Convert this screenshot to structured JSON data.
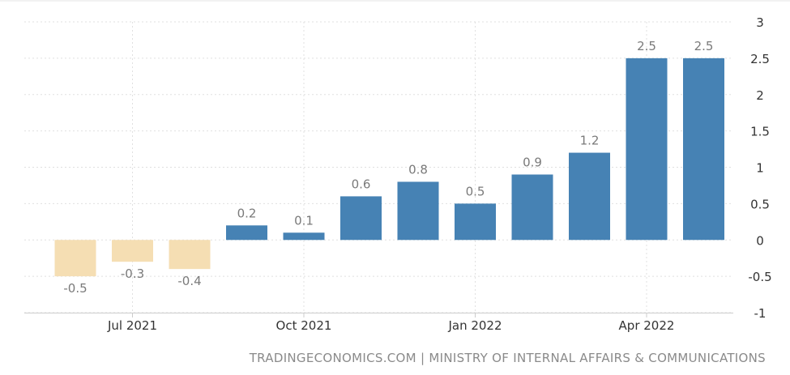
{
  "chart_data": {
    "type": "bar",
    "categories": [
      "Jun 2021",
      "Jul 2021",
      "Aug 2021",
      "Sep 2021",
      "Oct 2021",
      "Nov 2021",
      "Dec 2021",
      "Jan 2022",
      "Feb 2022",
      "Mar 2022",
      "Apr 2022",
      "May 2022"
    ],
    "values": [
      -0.5,
      -0.3,
      -0.4,
      0.2,
      0.1,
      0.6,
      0.8,
      0.5,
      0.9,
      1.2,
      2.5,
      2.5
    ],
    "data_labels": [
      "-0.5",
      "-0.3",
      "-0.4",
      "0.2",
      "0.1",
      "0.6",
      "0.8",
      "0.5",
      "0.9",
      "1.2",
      "2.5",
      "2.5"
    ],
    "x_tick_labels": [
      {
        "label": "Jul 2021",
        "category": "Jul 2021"
      },
      {
        "label": "Oct 2021",
        "category": "Oct 2021"
      },
      {
        "label": "Jan 2022",
        "category": "Jan 2022"
      },
      {
        "label": "Apr 2022",
        "category": "Apr 2022"
      }
    ],
    "y_ticks": [
      "3",
      "2.5",
      "2",
      "1.5",
      "1",
      "0.5",
      "0",
      "-0.5",
      "-1"
    ],
    "ylim": [
      -1,
      3
    ],
    "y_axis_side": "right",
    "grid": true,
    "legend": "none",
    "colors": {
      "positive": "#4682b4",
      "negative": "#f5deb3",
      "label": "#7a7a7a",
      "grid": "#e0e0e0"
    }
  },
  "source": "TRADINGECONOMICS.COM | MINISTRY OF INTERNAL AFFAIRS & COMMUNICATIONS"
}
